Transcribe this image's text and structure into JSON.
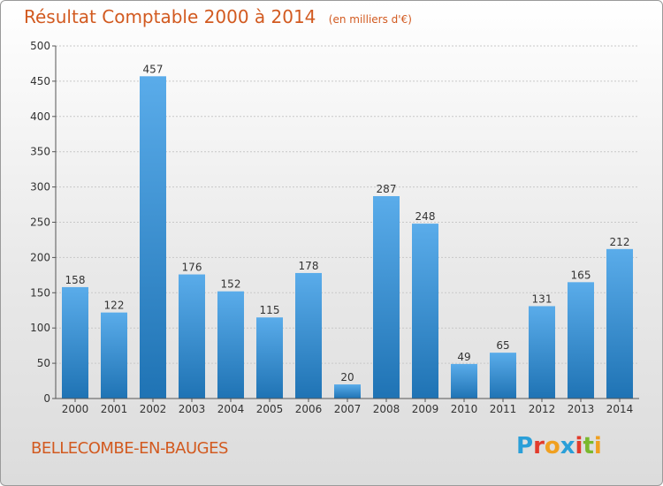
{
  "header": {
    "title": "Résultat Comptable 2000 à 2014",
    "subtitle": "(en milliers d'€)"
  },
  "footer": {
    "commune": "BELLECOMBE-EN-BAUGES",
    "brand_letters": [
      "P",
      "r",
      "o",
      "x",
      "i",
      "t",
      "i"
    ],
    "brand_colors": [
      "#2a9fd8",
      "#e23b2c",
      "#f0a020",
      "#2a9fd8",
      "#e23b2c",
      "#7ab82e",
      "#f0a020"
    ]
  },
  "colors": {
    "bar_top": "#5aacea",
    "bar_bottom": "#1f73b4",
    "text": "#d25a20",
    "axis_text": "#333333"
  },
  "chart_data": {
    "type": "bar",
    "title": "Résultat Comptable 2000 à 2014",
    "subtitle": "(en milliers d'€)",
    "categories": [
      "2000",
      "2001",
      "2002",
      "2003",
      "2004",
      "2005",
      "2006",
      "2007",
      "2008",
      "2009",
      "2010",
      "2011",
      "2012",
      "2013",
      "2014"
    ],
    "values": [
      158,
      122,
      457,
      176,
      152,
      115,
      178,
      20,
      287,
      248,
      49,
      65,
      131,
      165,
      212
    ],
    "ylim": [
      0,
      500
    ],
    "yticks": [
      0,
      50,
      100,
      150,
      200,
      250,
      300,
      350,
      400,
      450,
      500
    ],
    "grid": true,
    "legend": "none"
  }
}
